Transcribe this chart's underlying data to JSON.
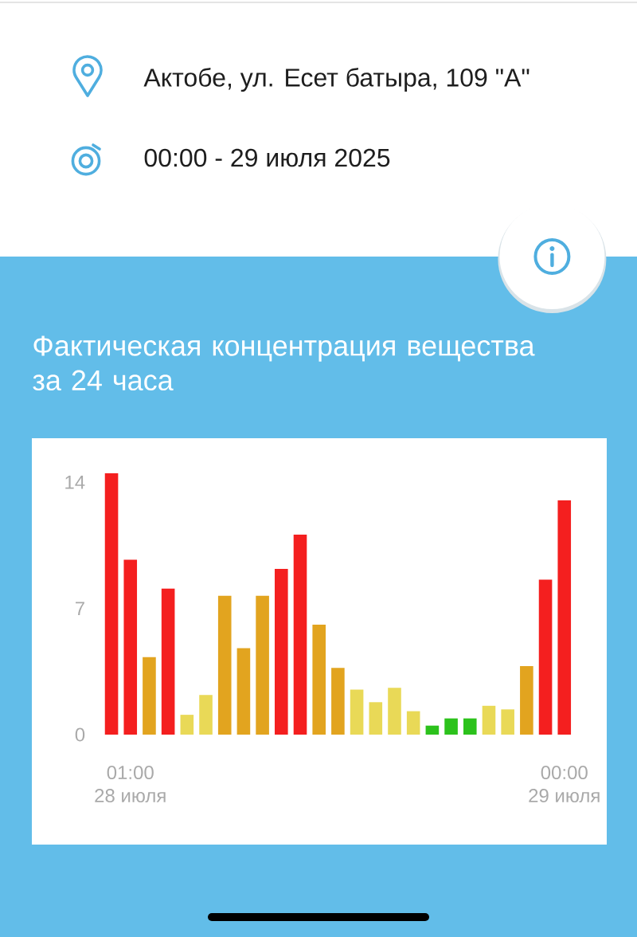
{
  "chart_data": {
    "type": "bar",
    "title": "Фактическая концентрация вещества за 24 часа",
    "annotations": [
      "Актобе, ул. Есет батыра, 109 \"А\"",
      "00:00 - 29 июля 2025"
    ],
    "categories": [
      null,
      "01:00\n28 июля",
      null,
      null,
      null,
      null,
      null,
      null,
      null,
      null,
      null,
      null,
      null,
      null,
      null,
      null,
      null,
      null,
      null,
      null,
      null,
      null,
      null,
      null,
      "00:00\n29 июля"
    ],
    "values": [
      14.5,
      9.7,
      4.3,
      8.1,
      1.1,
      2.2,
      7.7,
      4.8,
      7.7,
      9.2,
      11.1,
      6.1,
      3.7,
      2.5,
      1.8,
      2.6,
      1.3,
      0.5,
      0.9,
      0.9,
      1.6,
      1.4,
      3.8,
      8.6,
      13.0
    ],
    "colors": [
      "#f41f1f",
      "#f41f1f",
      "#e2a41f",
      "#f41f1f",
      "#e9d957",
      "#e9d957",
      "#e2a41f",
      "#e2a41f",
      "#e2a41f",
      "#f41f1f",
      "#f41f1f",
      "#e2a41f",
      "#e2a41f",
      "#e9d957",
      "#e9d957",
      "#e9d957",
      "#e9d957",
      "#2cc21c",
      "#2cc21c",
      "#2cc21c",
      "#e9d957",
      "#e9d957",
      "#e2a41f",
      "#f41f1f",
      "#f41f1f"
    ],
    "ylim": [
      0,
      14.5
    ],
    "yticks": [
      0,
      7,
      14
    ]
  }
}
